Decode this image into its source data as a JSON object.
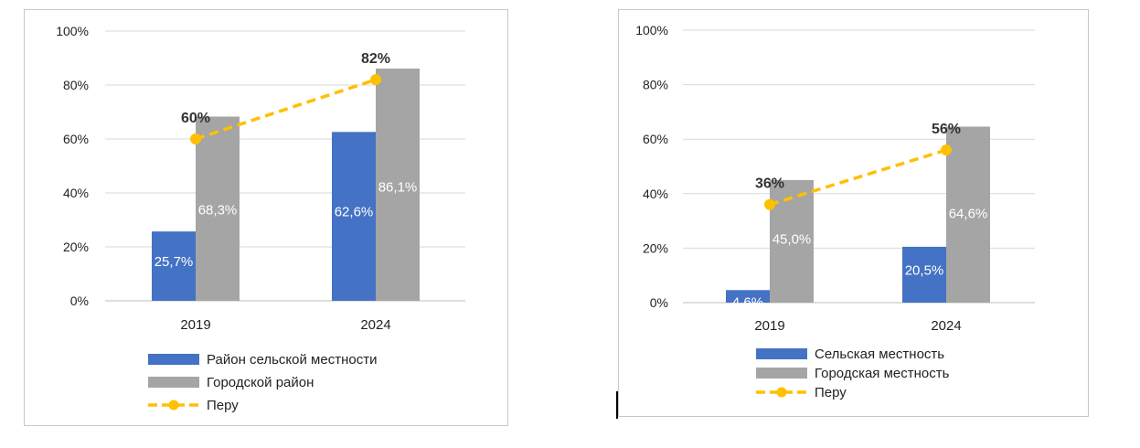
{
  "colors": {
    "rural": "#4472C4",
    "urban": "#A5A5A5",
    "peru": "#FFC000",
    "grid": "#D9D9D9"
  },
  "chart_data": [
    {
      "type": "bar",
      "categories": [
        "2019",
        "2024"
      ],
      "ylim": [
        0,
        100
      ],
      "yticks": [
        "0%",
        "20%",
        "40%",
        "60%",
        "80%",
        "100%"
      ],
      "grid": true,
      "legend_position": "bottom",
      "series": [
        {
          "name": "Район сельской местности",
          "kind": "bar",
          "values": [
            25.7,
            62.6
          ],
          "labels": [
            "25,7%",
            "62,6%"
          ]
        },
        {
          "name": "Городской район",
          "kind": "bar",
          "values": [
            68.3,
            86.1
          ],
          "labels": [
            "68,3%",
            "86,1%"
          ]
        },
        {
          "name": "Перу",
          "kind": "line",
          "values": [
            60,
            82
          ],
          "labels": [
            "60%",
            "82%"
          ]
        }
      ]
    },
    {
      "type": "bar",
      "categories": [
        "2019",
        "2024"
      ],
      "ylim": [
        0,
        100
      ],
      "yticks": [
        "0%",
        "20%",
        "40%",
        "60%",
        "80%",
        "100%"
      ],
      "grid": true,
      "legend_position": "bottom",
      "series": [
        {
          "name": "Сельская местность",
          "kind": "bar",
          "values": [
            4.6,
            20.5
          ],
          "labels": [
            "4,6%",
            "20,5%"
          ]
        },
        {
          "name": "Городская местность",
          "kind": "bar",
          "values": [
            45.0,
            64.6
          ],
          "labels": [
            "45,0%",
            "64,6%"
          ]
        },
        {
          "name": "Перу",
          "kind": "line",
          "values": [
            36,
            56
          ],
          "labels": [
            "36%",
            "56%"
          ]
        }
      ]
    }
  ]
}
